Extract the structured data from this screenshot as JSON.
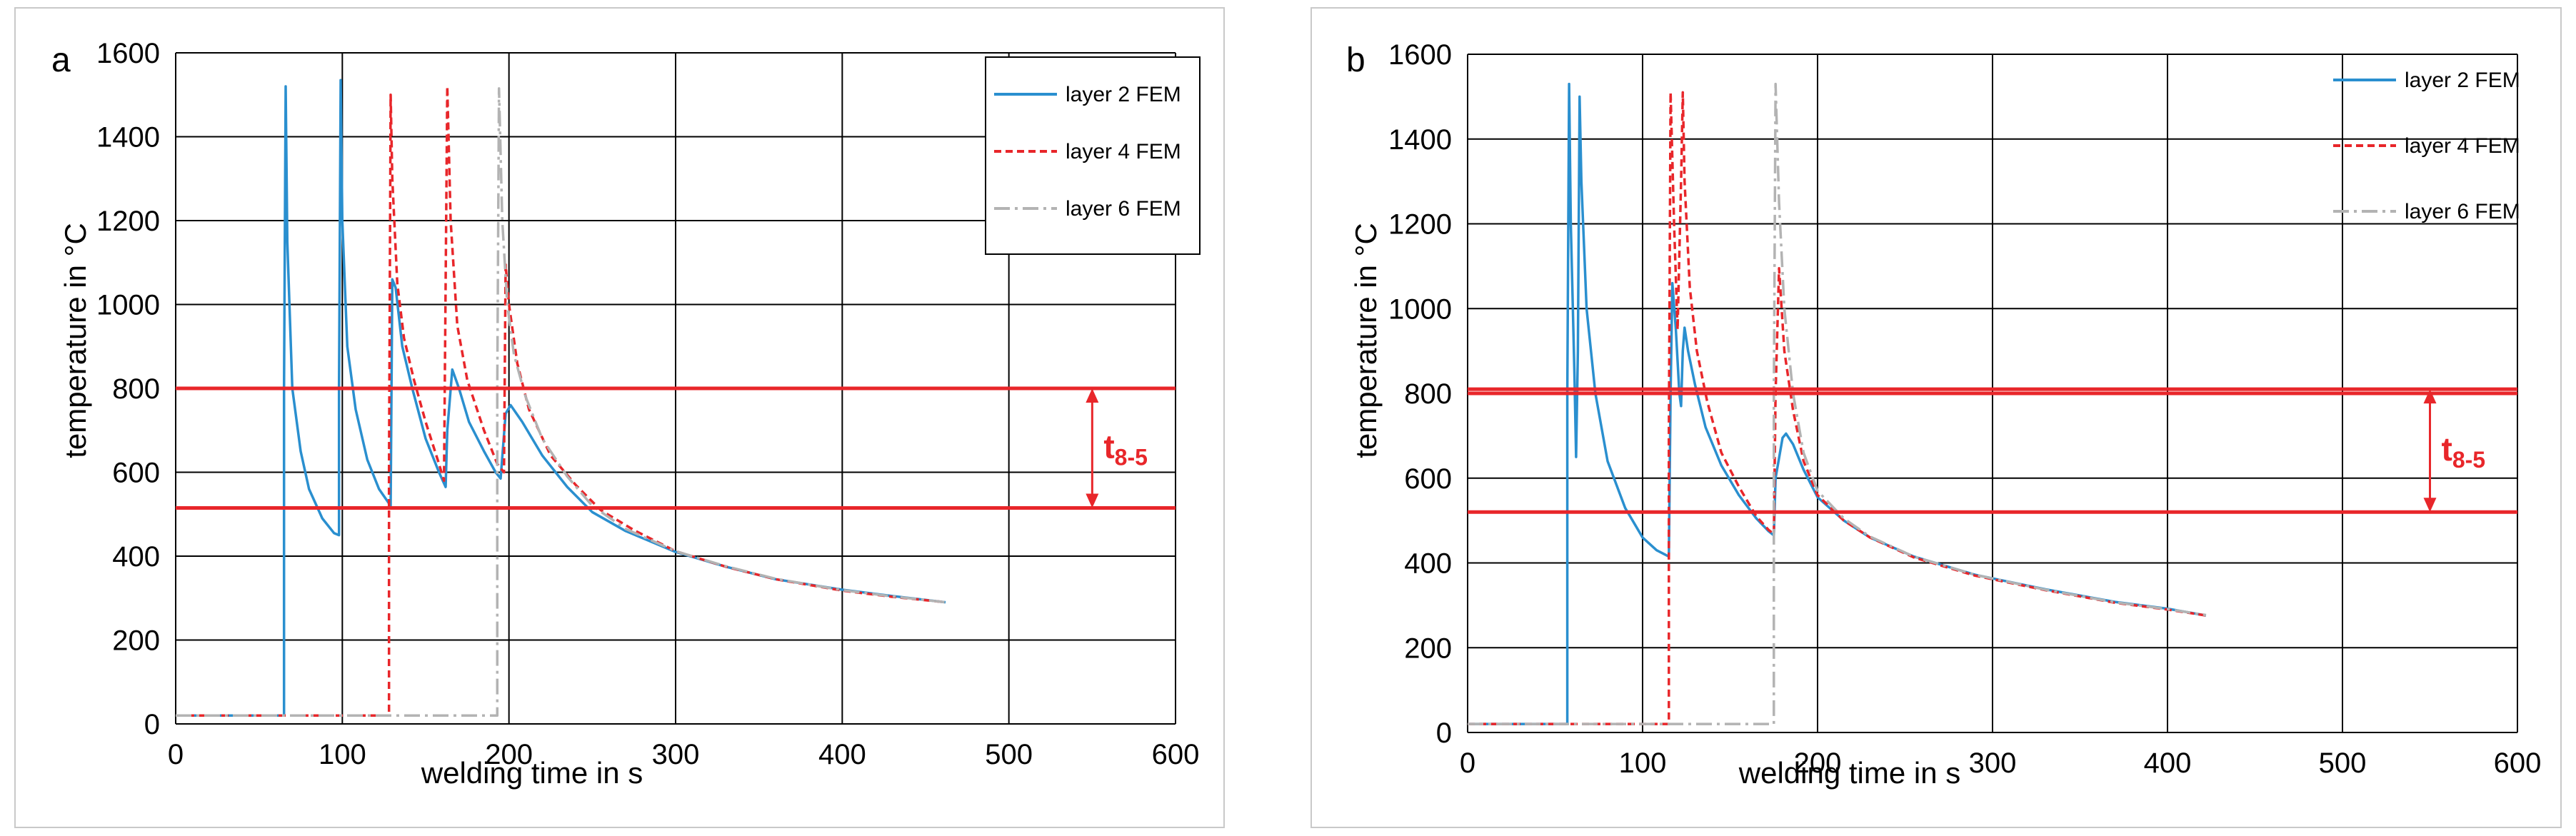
{
  "colors": {
    "layer2": "#2a8fcf",
    "layer4": "#e8262a",
    "layer6": "#b3b3b3",
    "threshold": "#e8262a",
    "grid": "#000000"
  },
  "chart_data": [
    {
      "type": "line",
      "panel_label": "a",
      "xlabel": "welding time in s",
      "ylabel": "temperature in °C",
      "xlim": [
        0,
        600
      ],
      "ylim": [
        0,
        1600
      ],
      "x_ticks": [
        "0",
        "100",
        "200",
        "300",
        "400",
        "500",
        "600"
      ],
      "y_ticks": [
        "0",
        "200",
        "400",
        "600",
        "800",
        "1000",
        "1200",
        "1400",
        "1600"
      ],
      "grid": true,
      "legend_position": "top-right",
      "legend_boxed": true,
      "thresholds": [
        800,
        515
      ],
      "annotation": {
        "base": "t",
        "sub": "8-5",
        "x": 550,
        "y_low": 515,
        "y_high": 800
      },
      "series": [
        {
          "name": "layer 2 FEM",
          "style": "solid",
          "color_key": "layer2",
          "points": [
            [
              0,
              20
            ],
            [
              65,
              20
            ],
            [
              65,
              800
            ],
            [
              66,
              1520
            ],
            [
              67,
              1150
            ],
            [
              70,
              800
            ],
            [
              75,
              650
            ],
            [
              80,
              560
            ],
            [
              88,
              490
            ],
            [
              95,
              455
            ],
            [
              98,
              450
            ],
            [
              98,
              800
            ],
            [
              99,
              1535
            ],
            [
              100,
              1200
            ],
            [
              103,
              900
            ],
            [
              108,
              750
            ],
            [
              115,
              630
            ],
            [
              122,
              560
            ],
            [
              129,
              520
            ],
            [
              130,
              1060
            ],
            [
              132,
              1040
            ],
            [
              136,
              900
            ],
            [
              142,
              800
            ],
            [
              150,
              680
            ],
            [
              158,
              600
            ],
            [
              162,
              565
            ],
            [
              163,
              700
            ],
            [
              166,
              845
            ],
            [
              170,
              800
            ],
            [
              176,
              720
            ],
            [
              185,
              650
            ],
            [
              192,
              600
            ],
            [
              195,
              585
            ],
            [
              198,
              740
            ],
            [
              201,
              760
            ],
            [
              208,
              720
            ],
            [
              220,
              640
            ],
            [
              235,
              565
            ],
            [
              250,
              505
            ],
            [
              270,
              460
            ],
            [
              300,
              410
            ],
            [
              330,
              375
            ],
            [
              360,
              345
            ],
            [
              400,
              320
            ],
            [
              430,
              305
            ],
            [
              462,
              290
            ]
          ]
        },
        {
          "name": "layer 4 FEM",
          "style": "dashed",
          "color_key": "layer4",
          "points": [
            [
              0,
              20
            ],
            [
              128,
              20
            ],
            [
              128,
              600
            ],
            [
              129,
              1500
            ],
            [
              130,
              1300
            ],
            [
              133,
              1050
            ],
            [
              137,
              920
            ],
            [
              143,
              820
            ],
            [
              150,
              720
            ],
            [
              158,
              620
            ],
            [
              161,
              580
            ],
            [
              163,
              1520
            ],
            [
              165,
              1200
            ],
            [
              169,
              950
            ],
            [
              175,
              820
            ],
            [
              185,
              700
            ],
            [
              193,
              620
            ],
            [
              197,
              600
            ],
            [
              198,
              1095
            ],
            [
              200,
              1000
            ],
            [
              205,
              860
            ],
            [
              212,
              750
            ],
            [
              225,
              640
            ],
            [
              240,
              570
            ],
            [
              255,
              510
            ],
            [
              275,
              462
            ],
            [
              300,
              412
            ],
            [
              330,
              375
            ],
            [
              360,
              345
            ],
            [
              400,
              318
            ],
            [
              430,
              303
            ],
            [
              462,
              290
            ]
          ]
        },
        {
          "name": "layer 6 FEM",
          "style": "dashdot",
          "color_key": "layer6",
          "points": [
            [
              0,
              20
            ],
            [
              193,
              20
            ],
            [
              193,
              800
            ],
            [
              194,
              1515
            ],
            [
              196,
              1200
            ],
            [
              199,
              1000
            ],
            [
              203,
              880
            ],
            [
              210,
              780
            ],
            [
              220,
              680
            ],
            [
              235,
              590
            ],
            [
              250,
              520
            ],
            [
              270,
              465
            ],
            [
              300,
              412
            ],
            [
              330,
              376
            ],
            [
              360,
              346
            ],
            [
              400,
              319
            ],
            [
              430,
              304
            ],
            [
              462,
              290
            ]
          ]
        }
      ]
    },
    {
      "type": "line",
      "panel_label": "b",
      "xlabel": "welding time in s",
      "ylabel": "temperature in °C",
      "xlim": [
        0,
        600
      ],
      "ylim": [
        0,
        1600
      ],
      "x_ticks": [
        "0",
        "100",
        "200",
        "300",
        "400",
        "500",
        "600"
      ],
      "y_ticks": [
        "0",
        "200",
        "400",
        "600",
        "800",
        "1000",
        "1200",
        "1400",
        "1600"
      ],
      "grid": true,
      "legend_position": "top-right",
      "legend_boxed": false,
      "thresholds": [
        810,
        800,
        520
      ],
      "annotation": {
        "base": "t",
        "sub": "8-5",
        "x": 550,
        "y_low": 520,
        "y_high": 810
      },
      "series": [
        {
          "name": "layer 2 FEM",
          "style": "solid",
          "color_key": "layer2",
          "points": [
            [
              0,
              20
            ],
            [
              57,
              20
            ],
            [
              57,
              800
            ],
            [
              58,
              1530
            ],
            [
              59,
              1200
            ],
            [
              61,
              850
            ],
            [
              62,
              650
            ],
            [
              63,
              900
            ],
            [
              64,
              1500
            ],
            [
              65,
              1300
            ],
            [
              68,
              1000
            ],
            [
              73,
              800
            ],
            [
              80,
              640
            ],
            [
              90,
              530
            ],
            [
              100,
              460
            ],
            [
              108,
              430
            ],
            [
              115,
              415
            ],
            [
              116,
              800
            ],
            [
              117,
              1060
            ],
            [
              119,
              950
            ],
            [
              121,
              800
            ],
            [
              122,
              770
            ],
            [
              123,
              900
            ],
            [
              124,
              955
            ],
            [
              126,
              900
            ],
            [
              130,
              820
            ],
            [
              136,
              720
            ],
            [
              145,
              630
            ],
            [
              155,
              560
            ],
            [
              165,
              505
            ],
            [
              172,
              475
            ],
            [
              175,
              465
            ],
            [
              176,
              600
            ],
            [
              180,
              695
            ],
            [
              182,
              705
            ],
            [
              186,
              680
            ],
            [
              192,
              620
            ],
            [
              200,
              555
            ],
            [
              215,
              500
            ],
            [
              230,
              460
            ],
            [
              255,
              415
            ],
            [
              290,
              372
            ],
            [
              330,
              338
            ],
            [
              370,
              308
            ],
            [
              400,
              292
            ],
            [
              422,
              276
            ]
          ]
        },
        {
          "name": "layer 4 FEM",
          "style": "dashed",
          "color_key": "layer4",
          "points": [
            [
              0,
              20
            ],
            [
              115,
              20
            ],
            [
              115,
              700
            ],
            [
              116,
              1510
            ],
            [
              118,
              1200
            ],
            [
              120,
              950
            ],
            [
              122,
              1300
            ],
            [
              123,
              1510
            ],
            [
              124,
              1300
            ],
            [
              127,
              1050
            ],
            [
              131,
              900
            ],
            [
              137,
              780
            ],
            [
              145,
              660
            ],
            [
              155,
              580
            ],
            [
              165,
              510
            ],
            [
              172,
              478
            ],
            [
              175,
              468
            ],
            [
              176,
              800
            ],
            [
              178,
              1095
            ],
            [
              181,
              900
            ],
            [
              186,
              760
            ],
            [
              192,
              640
            ],
            [
              200,
              560
            ],
            [
              215,
              500
            ],
            [
              230,
              460
            ],
            [
              255,
              413
            ],
            [
              290,
              370
            ],
            [
              330,
              336
            ],
            [
              370,
              306
            ],
            [
              400,
              290
            ],
            [
              422,
              276
            ]
          ]
        },
        {
          "name": "layer 6 FEM",
          "style": "dashdot",
          "color_key": "layer6",
          "points": [
            [
              0,
              20
            ],
            [
              175,
              20
            ],
            [
              175,
              800
            ],
            [
              176,
              1530
            ],
            [
              178,
              1250
            ],
            [
              181,
              1000
            ],
            [
              186,
              800
            ],
            [
              192,
              660
            ],
            [
              200,
              570
            ],
            [
              215,
              505
            ],
            [
              230,
              462
            ],
            [
              255,
              415
            ],
            [
              290,
              372
            ],
            [
              330,
              337
            ],
            [
              370,
              307
            ],
            [
              400,
              291
            ],
            [
              422,
              277
            ]
          ]
        }
      ]
    }
  ]
}
